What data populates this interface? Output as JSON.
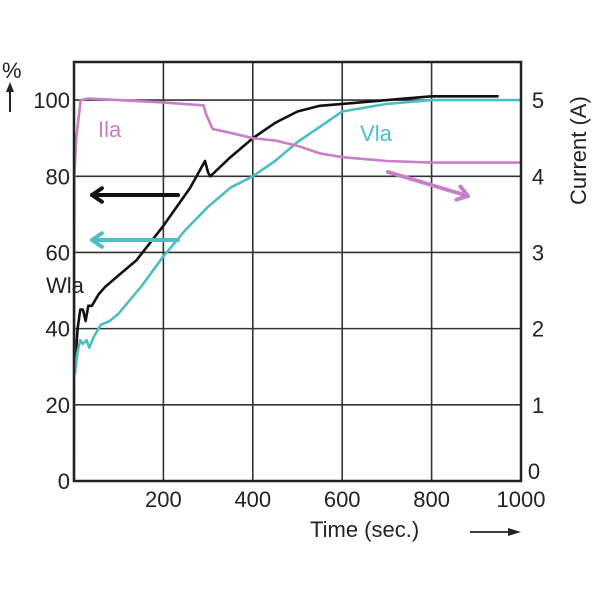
{
  "chart_data": {
    "type": "line",
    "title": "",
    "xlabel": "Time (sec.)",
    "ylabel_left": "%",
    "ylabel_right": "Current (A)",
    "xlim": [
      0,
      1000
    ],
    "ylim_left": [
      0,
      110
    ],
    "ylim_right": [
      0,
      5.5
    ],
    "xticks": [
      "200",
      "400",
      "600",
      "800",
      "1000"
    ],
    "yticks_left": [
      "0",
      "20",
      "40",
      "60",
      "80",
      "100"
    ],
    "yticks_right": [
      "0",
      "1",
      "2",
      "3",
      "4",
      "5"
    ],
    "grid": true,
    "colors": {
      "W": "#111111",
      "V": "#4dbfc0",
      "I": "#c77fc7"
    },
    "series": [
      {
        "name": "Wla",
        "label_main": "W",
        "label_sub": "la",
        "axis": "left",
        "x": [
          2,
          8,
          14,
          20,
          26,
          32,
          40,
          55,
          70,
          100,
          140,
          200,
          260,
          293,
          300,
          305,
          350,
          400,
          450,
          500,
          550,
          600,
          700,
          800,
          860,
          950
        ],
        "y": [
          29,
          40,
          45,
          45,
          42,
          46,
          46,
          49,
          51,
          54,
          58,
          67,
          77,
          84,
          81,
          80,
          85,
          90,
          94,
          97,
          98.5,
          99,
          100,
          101,
          101,
          101
        ]
      },
      {
        "name": "Vla",
        "label_main": "V",
        "label_sub": "la",
        "axis": "left",
        "x": [
          2,
          8,
          14,
          20,
          28,
          34,
          45,
          60,
          80,
          100,
          150,
          200,
          250,
          300,
          350,
          400,
          450,
          500,
          550,
          600,
          700,
          800,
          900,
          1000
        ],
        "y": [
          28,
          34,
          37,
          36,
          37,
          35,
          38,
          41,
          42,
          44,
          51,
          59,
          66,
          72,
          77,
          80,
          84,
          89,
          93,
          97,
          99,
          100,
          100,
          100
        ]
      },
      {
        "name": "Ila",
        "label_main": "I",
        "label_sub": "la",
        "axis": "right",
        "x": [
          0,
          1,
          5,
          15,
          30,
          100,
          200,
          290,
          295,
          310,
          350,
          400,
          450,
          500,
          550,
          600,
          700,
          800,
          900,
          1000
        ],
        "y": [
          0,
          4.0,
          4.5,
          5.0,
          5.02,
          5.0,
          4.97,
          4.93,
          4.82,
          4.62,
          4.57,
          4.5,
          4.47,
          4.4,
          4.3,
          4.25,
          4.2,
          4.18,
          4.18,
          4.18
        ]
      }
    ],
    "annotations": [
      {
        "text": "arrow-left",
        "series": "Wla",
        "direction": "left",
        "meaning": "refers to left axis"
      },
      {
        "text": "arrow-left",
        "series": "Vla",
        "direction": "left",
        "meaning": "refers to left axis"
      },
      {
        "text": "arrow-right",
        "series": "Ila",
        "direction": "right",
        "meaning": "refers to right axis"
      }
    ],
    "x_arrow": "right",
    "y_arrow": "up"
  }
}
